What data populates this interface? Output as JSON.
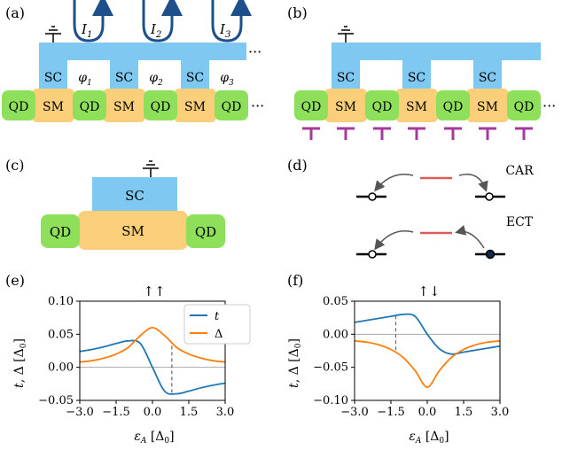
{
  "panels": {
    "a": {
      "label": "(a)",
      "qd": "QD",
      "sm": "SM",
      "sc": "SC",
      "currents": [
        "I",
        "I",
        "I"
      ],
      "current_subs": [
        "1",
        "2",
        "3"
      ],
      "phases": [
        "φ",
        "φ",
        "φ"
      ],
      "phase_subs": [
        "1",
        "2",
        "3"
      ],
      "ellipsis": "···"
    },
    "b": {
      "label": "(b)",
      "qd": "QD",
      "sm": "SM",
      "sc": "SC",
      "ellipsis": "···"
    },
    "c": {
      "label": "(c)",
      "qd": "QD",
      "sm": "SM",
      "sc": "SC"
    },
    "d": {
      "label": "(d)",
      "car": "CAR",
      "ect": "ECT"
    },
    "e": {
      "label": "(e)",
      "spin": "↑↑"
    },
    "f": {
      "label": "(f)",
      "spin": "↑↓"
    }
  },
  "colors": {
    "sc": "#7ec8f2",
    "sm": "#fbcf7a",
    "qd": "#8ee05a",
    "gate": "#a53a9c",
    "t": "#1f77b4",
    "delta": "#ff7f0e",
    "arrow": "#1d4f8a"
  },
  "chart_data": [
    {
      "type": "line",
      "panel": "e",
      "title": "↑↑",
      "xlabel": "ε_A [Δ_0]",
      "ylabel": "t, Δ [Δ_0]",
      "xlim": [
        -3.0,
        3.0
      ],
      "ylim": [
        -0.05,
        0.1
      ],
      "xticks": [
        "−3.0",
        "−1.5",
        "0.0",
        "1.5",
        "3.0"
      ],
      "yticks": [
        "−0.05",
        "0.00",
        "0.05",
        "0.10"
      ],
      "legend": "top-right",
      "legend_labels": [
        "t",
        "Δ"
      ],
      "x": [
        -3.0,
        -2.5,
        -2.0,
        -1.5,
        -1.0,
        -0.5,
        0.0,
        0.5,
        1.0,
        1.5,
        2.0,
        2.5,
        3.0
      ],
      "series": [
        {
          "name": "t",
          "values": [
            0.024,
            0.027,
            0.031,
            0.036,
            0.04,
            0.036,
            0.0,
            -0.036,
            -0.04,
            -0.036,
            -0.031,
            -0.027,
            -0.024
          ]
        },
        {
          "name": "Δ",
          "values": [
            0.008,
            0.01,
            0.014,
            0.02,
            0.03,
            0.048,
            0.06,
            0.048,
            0.03,
            0.02,
            0.014,
            0.01,
            0.008
          ]
        }
      ],
      "dashed_x": [
        -0.8,
        0.8
      ]
    },
    {
      "type": "line",
      "panel": "f",
      "title": "↑↓",
      "xlabel": "ε_A [Δ_0]",
      "ylabel": "t, Δ [Δ_0]",
      "xlim": [
        -3.0,
        3.0
      ],
      "ylim": [
        -0.1,
        0.05
      ],
      "xticks": [
        "−3.0",
        "−1.5",
        "0.0",
        "1.5",
        "3.0"
      ],
      "yticks": [
        "−0.10",
        "−0.05",
        "0.00",
        "0.05"
      ],
      "x": [
        -3.0,
        -2.5,
        -2.0,
        -1.5,
        -1.0,
        -0.5,
        0.0,
        0.5,
        1.0,
        1.5,
        2.0,
        2.5,
        3.0
      ],
      "series": [
        {
          "name": "t",
          "values": [
            0.018,
            0.021,
            0.024,
            0.027,
            0.03,
            0.027,
            0.0,
            -0.022,
            -0.03,
            -0.027,
            -0.024,
            -0.021,
            -0.018
          ]
        },
        {
          "name": "Δ",
          "values": [
            -0.01,
            -0.012,
            -0.016,
            -0.023,
            -0.035,
            -0.055,
            -0.08,
            -0.055,
            -0.035,
            -0.023,
            -0.016,
            -0.012,
            -0.01
          ]
        }
      ],
      "dashed_x": [
        -1.3,
        1.3
      ]
    }
  ]
}
